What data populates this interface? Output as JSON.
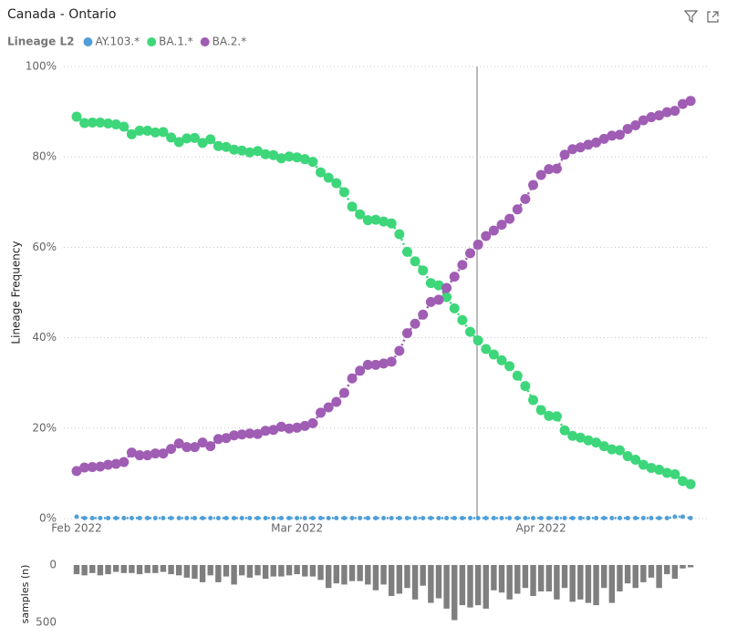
{
  "chart_data": [
    {
      "type": "line",
      "title": "Canada - Ontario",
      "legend_title": "Lineage L2",
      "ylabel": "Lineage Frequency",
      "categories": [
        "Feb 2022",
        null,
        null,
        null,
        null,
        null,
        null,
        null,
        null,
        null,
        null,
        null,
        null,
        null,
        null,
        null,
        null,
        null,
        null,
        null,
        null,
        null,
        null,
        null,
        null,
        null,
        null,
        null,
        "Mar 2022",
        null,
        null,
        null,
        null,
        null,
        null,
        null,
        null,
        null,
        null,
        null,
        null,
        null,
        null,
        null,
        null,
        null,
        null,
        null,
        null,
        null,
        null,
        null,
        null,
        null,
        null,
        null,
        null,
        null,
        null,
        "Apr 2022",
        null,
        null,
        null,
        null,
        null,
        null,
        null,
        null,
        null,
        null,
        null,
        null,
        null,
        null,
        null,
        null,
        null,
        null,
        null
      ],
      "series": [
        {
          "name": "AY.103.*",
          "color": "#4f9fd8",
          "values": [
            0.4,
            0.1,
            0.1,
            0.1,
            0.1,
            0.1,
            0.1,
            0.1,
            0.1,
            0.1,
            0.1,
            0.1,
            0.1,
            0.1,
            0.1,
            0.1,
            0.1,
            0.1,
            0.1,
            0.1,
            0.1,
            0.1,
            0.1,
            0.1,
            0.1,
            0.1,
            0.1,
            0.1,
            0.1,
            0.1,
            0.1,
            0.1,
            0.1,
            0.1,
            0.1,
            0.1,
            0.1,
            0.1,
            0.1,
            0.1,
            0.1,
            0.1,
            0.1,
            0.1,
            0.1,
            0.1,
            0.1,
            0.1,
            0.1,
            0.1,
            0.1,
            0.1,
            0.1,
            0.1,
            0.1,
            0.1,
            0.1,
            0.1,
            0.1,
            0.1,
            0.1,
            0.1,
            0.1,
            0.1,
            0.1,
            0.1,
            0.1,
            0.1,
            0.1,
            0.1,
            0.1,
            0.1,
            0.1,
            0.1,
            0.1,
            0.1,
            0.4,
            0.4,
            0.1
          ]
        },
        {
          "name": "BA.1.*",
          "color": "#3ed67a",
          "values": [
            88.9,
            87.5,
            87.6,
            87.6,
            87.4,
            87.2,
            86.7,
            85,
            85.8,
            85.8,
            85.4,
            85.5,
            84.3,
            83.3,
            84.1,
            84.2,
            83.1,
            83.9,
            82.4,
            82.2,
            81.6,
            81.4,
            81,
            81.3,
            80.6,
            80.4,
            79.7,
            80.1,
            79.9,
            79.5,
            78.9,
            76.6,
            75.4,
            74.2,
            72.2,
            69,
            67.3,
            66,
            66.1,
            65.7,
            65.3,
            62.9,
            59,
            56.9,
            54.9,
            52.1,
            51.6,
            49,
            46.5,
            43.9,
            41.3,
            39.4,
            37.5,
            36.3,
            35,
            33.7,
            31.6,
            29.3,
            26.2,
            24,
            22.7,
            22.6,
            19.5,
            18.3,
            17.9,
            17.3,
            16.8,
            16,
            15.3,
            15.1,
            13.8,
            13,
            11.9,
            11.2,
            10.8,
            10.1,
            9.8,
            8.3,
            7.6
          ]
        },
        {
          "name": "BA.2.*",
          "color": "#a05db4",
          "values": [
            10.5,
            11.3,
            11.4,
            11.5,
            11.9,
            12.1,
            12.5,
            14.6,
            14,
            14,
            14.4,
            14.4,
            15.4,
            16.6,
            15.8,
            15.8,
            16.8,
            16,
            17.6,
            17.8,
            18.4,
            18.6,
            18.8,
            18.7,
            19.4,
            19.6,
            20.3,
            19.9,
            20.1,
            20.5,
            21.1,
            23.4,
            24.6,
            25.8,
            27.8,
            31,
            32.7,
            34,
            34,
            34.3,
            34.7,
            37.1,
            41,
            43.1,
            45.1,
            47.9,
            48.4,
            51,
            53.5,
            56.1,
            58.7,
            60.6,
            62.5,
            63.7,
            65,
            66.3,
            68.4,
            70.7,
            73.8,
            76,
            77.3,
            77.4,
            80.5,
            81.7,
            82.1,
            82.7,
            83.2,
            84,
            84.7,
            84.9,
            86.2,
            87,
            88.1,
            88.8,
            89.2,
            89.9,
            90.2,
            91.7,
            92.4
          ]
        }
      ],
      "ylim": [
        0,
        100
      ],
      "yticks": [
        {
          "value": 0,
          "label": "0%"
        },
        {
          "value": 20,
          "label": "20%"
        },
        {
          "value": 40,
          "label": "40%"
        },
        {
          "value": 60,
          "label": "60%"
        },
        {
          "value": 80,
          "label": "80%"
        },
        {
          "value": 100,
          "label": "100%"
        }
      ],
      "grid": true
    },
    {
      "type": "bar",
      "ylabel": "samples (n)",
      "color": "#7f7f7f",
      "inverted": true,
      "values": [
        80,
        90,
        70,
        90,
        80,
        60,
        70,
        70,
        80,
        70,
        70,
        60,
        80,
        90,
        110,
        120,
        150,
        90,
        150,
        100,
        170,
        90,
        110,
        90,
        120,
        100,
        100,
        90,
        80,
        100,
        100,
        130,
        200,
        160,
        170,
        140,
        140,
        170,
        220,
        170,
        270,
        250,
        200,
        300,
        180,
        330,
        290,
        380,
        480,
        350,
        370,
        350,
        380,
        220,
        240,
        300,
        250,
        200,
        270,
        230,
        230,
        300,
        200,
        320,
        300,
        330,
        350,
        200,
        330,
        230,
        160,
        200,
        150,
        110,
        200,
        80,
        120,
        30,
        20
      ],
      "ylim": [
        0,
        500
      ],
      "yticks": [
        0,
        500
      ]
    }
  ]
}
